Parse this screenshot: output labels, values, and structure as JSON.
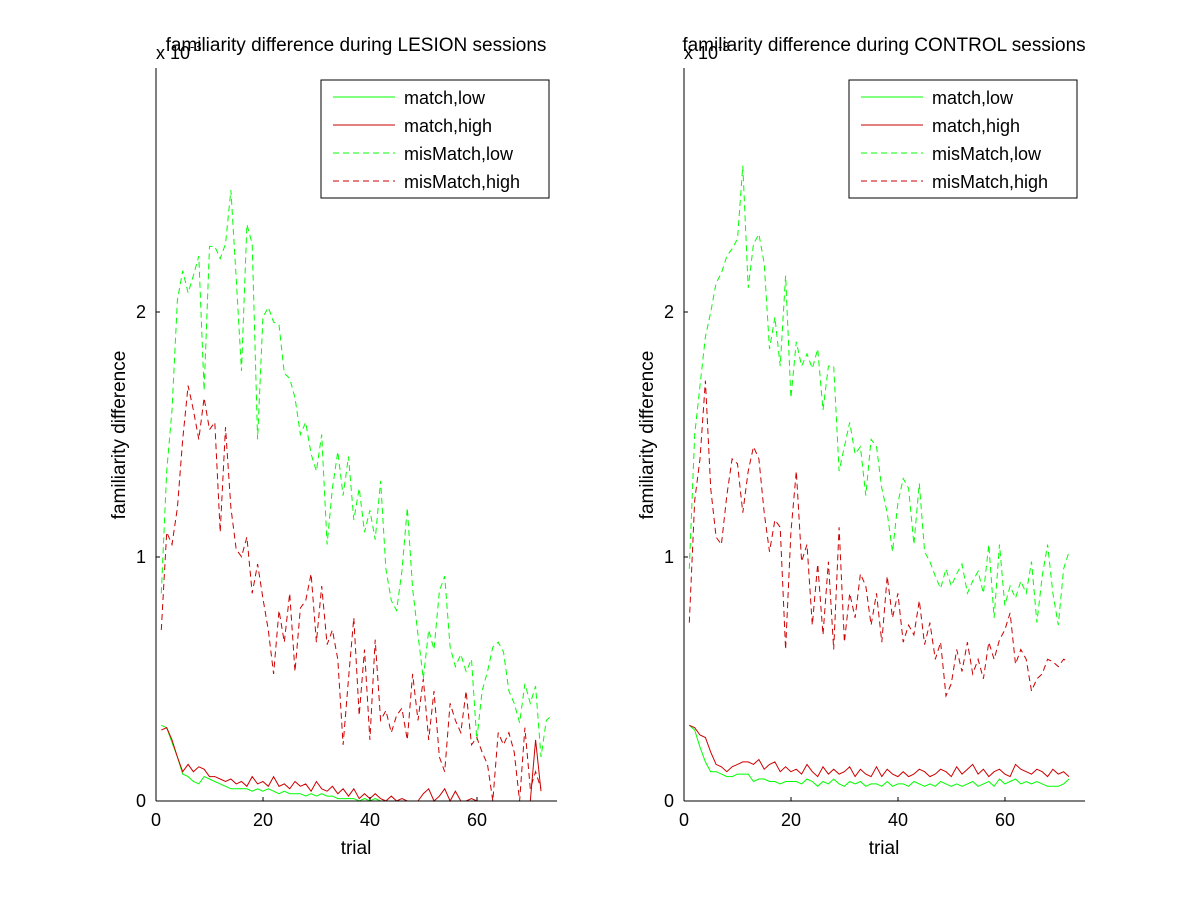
{
  "figure": {
    "background": "#ffffff",
    "colors": {
      "low": "#00ff00",
      "high": "#cc0000",
      "axis": "#000000"
    }
  },
  "chart_data": [
    {
      "type": "line",
      "title": "familiarity difference during LESION sessions",
      "xlabel": "trial",
      "ylabel": "familiarity difference",
      "exponent_label": "x 10",
      "exponent_power": "-3",
      "xlim": [
        0,
        75
      ],
      "ylim": [
        0,
        0.003
      ],
      "xticks": [
        "0",
        "20",
        "40",
        "60"
      ],
      "yticks": [
        "0",
        "1",
        "2"
      ],
      "legend_position": "top-right",
      "series": [
        {
          "name": "match,low",
          "color": "#00ff00",
          "dash": "solid",
          "values": [
            0.00031,
            0.0003,
            0.00024,
            0.00018,
            0.00011,
            0.0001,
            8e-05,
            7e-05,
            0.0001,
            9e-05,
            8e-05,
            7e-05,
            6e-05,
            5e-05,
            5e-05,
            5e-05,
            5e-05,
            4e-05,
            5e-05,
            4e-05,
            5e-05,
            4e-05,
            3e-05,
            4e-05,
            3e-05,
            3e-05,
            3e-05,
            2e-05,
            3e-05,
            2e-05,
            3e-05,
            2e-05,
            2e-05,
            1e-05,
            1e-05,
            1e-05,
            1e-05,
            0.0,
            1e-05,
            0.0,
            1e-05,
            0.0,
            0.0,
            0.0,
            0.0,
            0.0,
            0.0,
            0.0,
            0.0
          ]
        },
        {
          "name": "match,high",
          "color": "#cc0000",
          "dash": "solid",
          "values": [
            0.00029,
            0.0003,
            0.00025,
            0.00018,
            0.00012,
            0.00015,
            0.00012,
            0.00014,
            0.00013,
            0.0001,
            0.0001,
            9e-05,
            8e-05,
            9e-05,
            7e-05,
            8e-05,
            6e-05,
            0.0001,
            7e-05,
            8e-05,
            6e-05,
            0.0001,
            6e-05,
            7e-05,
            5e-05,
            8e-05,
            6e-05,
            7e-05,
            4e-05,
            8e-05,
            5e-05,
            4e-05,
            6e-05,
            3e-05,
            5e-05,
            2e-05,
            5e-05,
            1e-05,
            3e-05,
            1e-05,
            3e-05,
            1e-05,
            0.0,
            2e-05,
            0.0,
            1e-05,
            0.0,
            0.0,
            0.0,
            3e-05,
            5e-05,
            0.0,
            2e-05,
            5e-05,
            0.0,
            4e-05,
            0.0,
            0.0,
            1e-05,
            0.0,
            0.0,
            0.0,
            0.0,
            0.0,
            0.0,
            0.0,
            0.0,
            0.0,
            0.0,
            0.0,
            0.00025,
            4e-05
          ]
        },
        {
          "name": "misMatch,low",
          "color": "#00ff00",
          "dash": "dashed",
          "values": [
            0.00085,
            0.00135,
            0.0016,
            0.00205,
            0.00217,
            0.00208,
            0.00215,
            0.00223,
            0.00168,
            0.00227,
            0.00227,
            0.00222,
            0.00228,
            0.0025,
            0.00214,
            0.00176,
            0.00236,
            0.00228,
            0.00148,
            0.00198,
            0.00202,
            0.00196,
            0.00195,
            0.00175,
            0.00173,
            0.00165,
            0.0015,
            0.00155,
            0.00142,
            0.00135,
            0.0015,
            0.00105,
            0.00128,
            0.00143,
            0.00125,
            0.00141,
            0.00115,
            0.00128,
            0.0011,
            0.00119,
            0.00107,
            0.00131,
            0.00095,
            0.00082,
            0.00078,
            0.00094,
            0.0012,
            0.00087,
            0.00068,
            0.0005,
            0.0007,
            0.00062,
            0.00086,
            0.00092,
            0.00063,
            0.00055,
            0.0006,
            0.00053,
            0.00058,
            0.00025,
            0.00045,
            0.00053,
            0.00063,
            0.00065,
            0.00061,
            0.00045,
            0.0004,
            0.00032,
            0.00048,
            0.0004,
            0.00047,
            0.00018,
            0.00033,
            0.00035
          ]
        },
        {
          "name": "misMatch,high",
          "color": "#cc0000",
          "dash": "dashed",
          "values": [
            0.0007,
            0.0011,
            0.00105,
            0.0012,
            0.00148,
            0.0017,
            0.0016,
            0.00148,
            0.00165,
            0.00152,
            0.00155,
            0.0011,
            0.00153,
            0.0012,
            0.00103,
            0.001,
            0.00108,
            0.00085,
            0.00097,
            0.00083,
            0.0007,
            0.00052,
            0.00078,
            0.00065,
            0.00085,
            0.00053,
            0.00079,
            0.00082,
            0.00093,
            0.00065,
            0.00088,
            0.00064,
            0.0007,
            0.00058,
            0.00023,
            0.0005,
            0.00075,
            0.00035,
            0.00062,
            0.00025,
            0.00066,
            0.00033,
            0.00037,
            0.00028,
            0.00035,
            0.00038,
            0.00025,
            0.00052,
            0.00033,
            0.0005,
            0.00025,
            0.00045,
            0.00018,
            0.00012,
            0.0004,
            0.00033,
            0.00028,
            0.00045,
            0.00023,
            0.00026,
            0.0002,
            0.00015,
            0.0,
            0.00028,
            0.00023,
            0.00028,
            0.0002,
            0.0,
            0.0003,
            5e-05,
            0.00012,
            5e-05
          ]
        }
      ]
    },
    {
      "type": "line",
      "title": "familiarity difference during CONTROL sessions",
      "xlabel": "trial",
      "ylabel": "familiarity difference",
      "exponent_label": "x 10",
      "exponent_power": "-3",
      "xlim": [
        0,
        75
      ],
      "ylim": [
        0,
        0.003
      ],
      "xticks": [
        "0",
        "20",
        "40",
        "60"
      ],
      "yticks": [
        "0",
        "1",
        "2"
      ],
      "legend_position": "top-right",
      "series": [
        {
          "name": "match,low",
          "color": "#00ff00",
          "dash": "solid",
          "values": [
            0.00031,
            0.00029,
            0.00022,
            0.00016,
            0.00012,
            0.00012,
            0.00011,
            0.0001,
            0.0001,
            0.00011,
            0.00011,
            0.00011,
            8e-05,
            9e-05,
            9e-05,
            8e-05,
            8e-05,
            7e-05,
            8e-05,
            8e-05,
            8e-05,
            7e-05,
            9e-05,
            8e-05,
            6e-05,
            8e-05,
            7e-05,
            9e-05,
            7e-05,
            6e-05,
            8e-05,
            7e-05,
            8e-05,
            6e-05,
            7e-05,
            7e-05,
            6e-05,
            8e-05,
            6e-05,
            7e-05,
            7e-05,
            6e-05,
            8e-05,
            7e-05,
            6e-05,
            7e-05,
            6e-05,
            8e-05,
            7e-05,
            6e-05,
            7e-05,
            6e-05,
            7e-05,
            8e-05,
            6e-05,
            7e-05,
            8e-05,
            6e-05,
            9e-05,
            7e-05,
            8e-05,
            9e-05,
            7e-05,
            8e-05,
            7e-05,
            8e-05,
            7e-05,
            6e-05,
            6e-05,
            6e-05,
            7e-05,
            9e-05
          ]
        },
        {
          "name": "match,high",
          "color": "#cc0000",
          "dash": "solid",
          "values": [
            0.00031,
            0.0003,
            0.00027,
            0.00026,
            0.0002,
            0.00015,
            0.00014,
            0.00012,
            0.00014,
            0.00015,
            0.00016,
            0.00016,
            0.00015,
            0.00017,
            0.00013,
            0.00015,
            0.00016,
            0.00012,
            0.00014,
            0.00012,
            0.00013,
            0.00011,
            0.00015,
            0.00012,
            0.0001,
            0.00014,
            0.00011,
            0.00013,
            0.00011,
            0.00012,
            0.00014,
            0.0001,
            0.00013,
            0.00011,
            0.0001,
            0.00014,
            0.0001,
            0.00013,
            0.00011,
            0.0001,
            0.00012,
            0.0001,
            0.00011,
            0.00013,
            0.00012,
            0.0001,
            0.00011,
            0.00013,
            0.00012,
            0.0001,
            0.00014,
            0.00011,
            0.00013,
            0.00015,
            0.00011,
            0.00013,
            0.0001,
            0.00012,
            0.00013,
            0.00011,
            0.0001,
            0.00015,
            0.00013,
            0.00012,
            0.00011,
            0.00013,
            0.00012,
            0.0001,
            0.00013,
            0.00011,
            0.00012,
            0.0001
          ]
        },
        {
          "name": "misMatch,low",
          "color": "#00ff00",
          "dash": "dashed",
          "values": [
            0.00095,
            0.0015,
            0.0017,
            0.0019,
            0.002,
            0.00212,
            0.00216,
            0.00223,
            0.00226,
            0.0023,
            0.0026,
            0.0021,
            0.00228,
            0.00232,
            0.0022,
            0.00185,
            0.00198,
            0.00178,
            0.00215,
            0.00165,
            0.00188,
            0.00178,
            0.00183,
            0.00177,
            0.00185,
            0.0016,
            0.00178,
            0.00178,
            0.00135,
            0.00145,
            0.00155,
            0.00142,
            0.00145,
            0.00125,
            0.00148,
            0.00145,
            0.00128,
            0.00118,
            0.00102,
            0.00122,
            0.00132,
            0.00128,
            0.00105,
            0.0013,
            0.00102,
            0.00098,
            0.00092,
            0.00087,
            0.00095,
            0.00088,
            0.00093,
            0.00097,
            0.00085,
            0.0009,
            0.00094,
            0.00085,
            0.00105,
            0.00075,
            0.00105,
            0.0008,
            0.00088,
            0.00083,
            0.0009,
            0.00085,
            0.00098,
            0.00073,
            0.00092,
            0.00105,
            0.00085,
            0.00072,
            0.00095,
            0.00102
          ]
        },
        {
          "name": "misMatch,high",
          "color": "#cc0000",
          "dash": "dashed",
          "values": [
            0.00073,
            0.00123,
            0.0014,
            0.00172,
            0.00128,
            0.00108,
            0.00105,
            0.00125,
            0.0014,
            0.00138,
            0.00118,
            0.00135,
            0.00145,
            0.0014,
            0.00118,
            0.00102,
            0.00115,
            0.00112,
            0.00062,
            0.0011,
            0.00135,
            0.00098,
            0.00105,
            0.00072,
            0.00097,
            0.00068,
            0.00098,
            0.00062,
            0.00112,
            0.00065,
            0.00085,
            0.00075,
            0.00093,
            0.00088,
            0.00072,
            0.00085,
            0.00065,
            0.00092,
            0.00075,
            0.00085,
            0.00065,
            0.00072,
            0.00068,
            0.00082,
            0.00064,
            0.00073,
            0.00058,
            0.00065,
            0.00043,
            0.00048,
            0.00062,
            0.00053,
            0.00065,
            0.00052,
            0.00058,
            0.0005,
            0.00065,
            0.00058,
            0.00066,
            0.0007,
            0.00077,
            0.00056,
            0.00062,
            0.00058,
            0.00045,
            0.0005,
            0.00052,
            0.00058,
            0.00057,
            0.00055,
            0.00058,
            0.00057
          ]
        }
      ]
    }
  ]
}
